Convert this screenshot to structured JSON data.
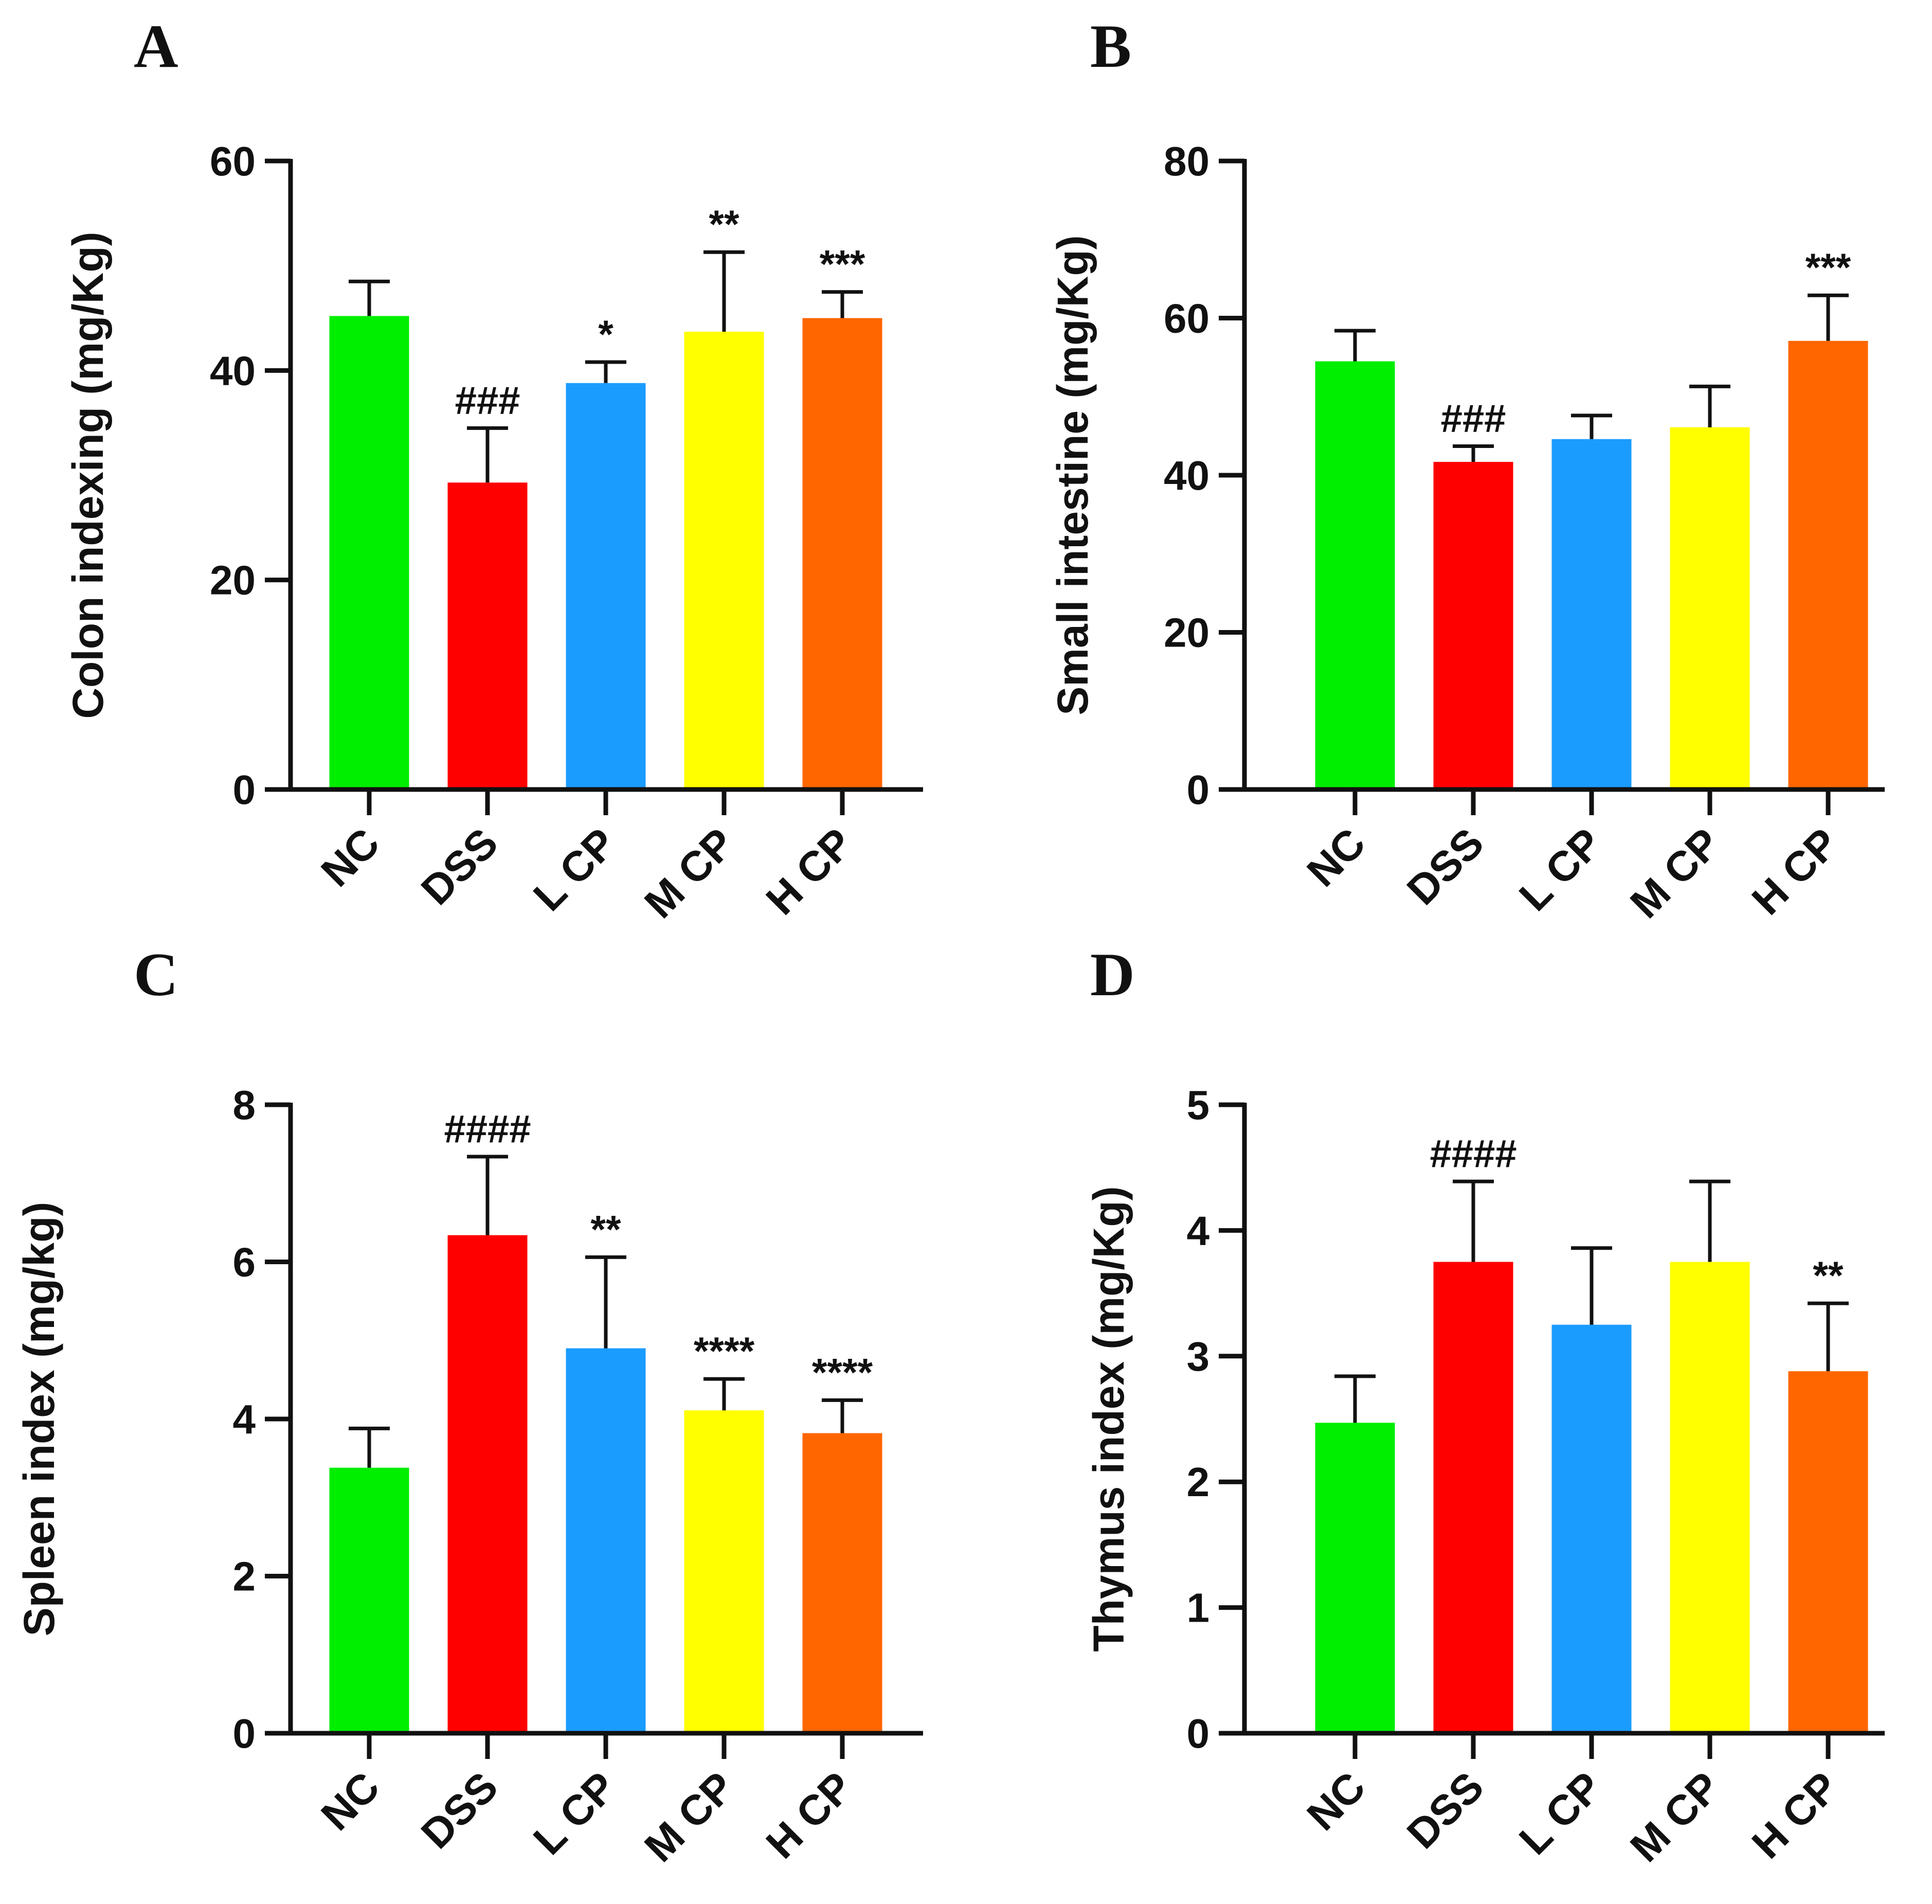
{
  "figure": {
    "groups": [
      "NC",
      "DSS",
      "L CP",
      "M CP",
      "H CP"
    ],
    "colors": {
      "NC": "#00ee00",
      "DSS": "#ff0000",
      "L CP": "#1a9cff",
      "M CP": "#ffff00",
      "H CP": "#ff6600"
    }
  },
  "chart_data": [
    {
      "panel": "A",
      "type": "bar",
      "ylabel": "Colon indexing (mg/Kg)",
      "ylim": [
        0,
        60
      ],
      "yticks": [
        "0",
        "20",
        "40",
        "60"
      ],
      "yticks_values": [
        0,
        20,
        40,
        60
      ],
      "categories": [
        "NC",
        "DSS",
        "L CP",
        "M CP",
        "H CP"
      ],
      "values": [
        45.2,
        29.3,
        38.8,
        43.7,
        45.0
      ],
      "errors": [
        3.3,
        5.2,
        2.0,
        7.6,
        2.5
      ],
      "annotations": [
        "",
        "###",
        "*",
        "**",
        "***"
      ]
    },
    {
      "panel": "B",
      "type": "bar",
      "ylabel": "Small intestine (mg/Kg)",
      "ylim": [
        0,
        80
      ],
      "yticks": [
        "0",
        "20",
        "40",
        "60",
        "80"
      ],
      "yticks_values": [
        0,
        20,
        40,
        60,
        80
      ],
      "categories": [
        "NC",
        "DSS",
        "L CP",
        "M CP",
        "H CP"
      ],
      "values": [
        54.5,
        41.7,
        44.6,
        46.1,
        57.1
      ],
      "errors": [
        3.9,
        2.0,
        3.0,
        5.2,
        5.8
      ],
      "annotations": [
        "",
        "###",
        "",
        "",
        "***"
      ]
    },
    {
      "panel": "C",
      "type": "bar",
      "ylabel": "Spleen index (mg/kg)",
      "ylim": [
        0,
        8
      ],
      "yticks": [
        "0",
        "2",
        "4",
        "6",
        "8"
      ],
      "yticks_values": [
        0,
        2,
        4,
        6,
        8
      ],
      "categories": [
        "NC",
        "DSS",
        "L CP",
        "M CP",
        "H CP"
      ],
      "values": [
        3.38,
        6.34,
        4.9,
        4.11,
        3.82
      ],
      "errors": [
        0.5,
        1.0,
        1.16,
        0.4,
        0.42
      ],
      "annotations": [
        "",
        "####",
        "**",
        "****",
        "****"
      ]
    },
    {
      "panel": "D",
      "type": "bar",
      "ylabel": "Thymus index (mg/Kg)",
      "ylim": [
        0,
        5
      ],
      "yticks": [
        "0",
        "1",
        "2",
        "3",
        "4",
        "5"
      ],
      "yticks_values": [
        0,
        1,
        2,
        3,
        4,
        5
      ],
      "categories": [
        "NC",
        "DSS",
        "L CP",
        "M CP",
        "H CP"
      ],
      "values": [
        2.47,
        3.75,
        3.25,
        3.75,
        2.88
      ],
      "errors": [
        0.37,
        0.64,
        0.61,
        0.64,
        0.54
      ],
      "annotations": [
        "",
        "####",
        "",
        "",
        "**"
      ]
    }
  ]
}
